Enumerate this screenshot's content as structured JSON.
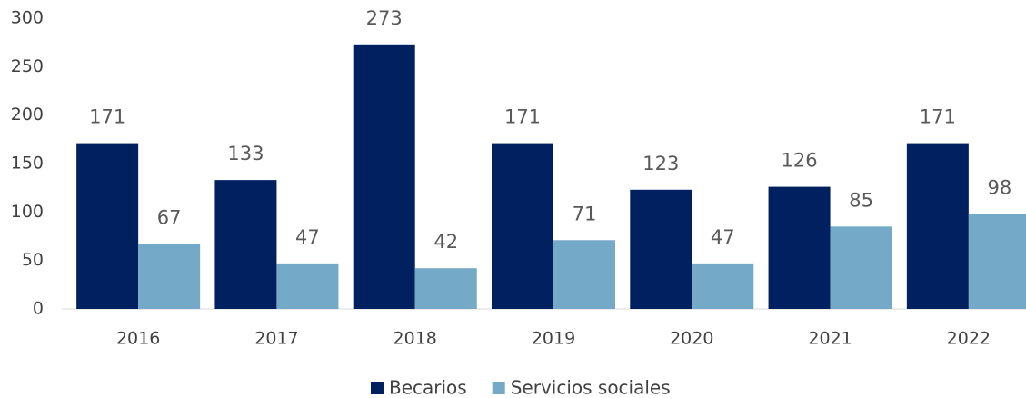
{
  "chart_data": {
    "type": "bar",
    "categories": [
      "2016",
      "2017",
      "2018",
      "2019",
      "2020",
      "2021",
      "2022"
    ],
    "series": [
      {
        "name": "Becarios",
        "color": "#002060",
        "values": [
          171,
          133,
          273,
          171,
          123,
          126,
          171
        ]
      },
      {
        "name": "Servicios sociales",
        "color": "#74a9c8",
        "values": [
          67,
          47,
          42,
          71,
          47,
          85,
          98
        ]
      }
    ],
    "ylim": [
      0,
      300
    ],
    "yticks": [
      0,
      50,
      100,
      150,
      200,
      250,
      300
    ],
    "grid": false,
    "legend": "bottom"
  }
}
